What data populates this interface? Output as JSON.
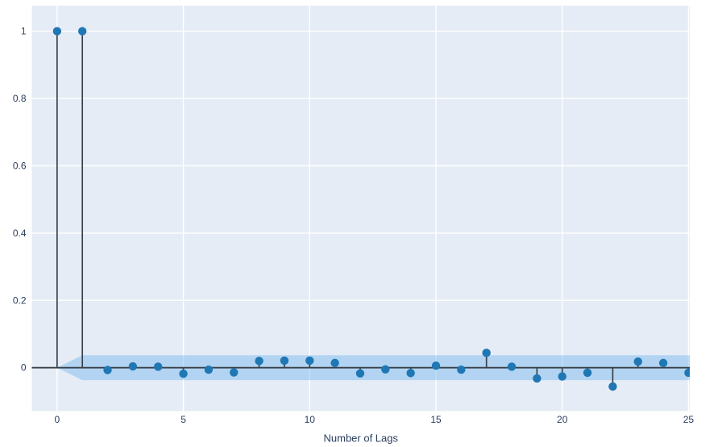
{
  "figure": {
    "outer_background": "#ffffff"
  },
  "chart_data": {
    "type": "stem",
    "description": "Autocorrelation function (ACF) stem plot with confidence band",
    "title": "",
    "xlabel": "Number of Lags",
    "ylabel": "",
    "x": [
      0,
      1,
      2,
      3,
      4,
      5,
      6,
      7,
      8,
      9,
      10,
      11,
      12,
      13,
      14,
      15,
      16,
      17,
      18,
      19,
      20,
      21,
      22,
      23,
      24,
      25
    ],
    "values": [
      1.0,
      1.0,
      -0.007,
      0.004,
      0.003,
      -0.018,
      -0.006,
      -0.014,
      0.02,
      0.021,
      0.021,
      0.014,
      -0.017,
      -0.005,
      -0.016,
      0.006,
      -0.006,
      0.044,
      0.003,
      -0.032,
      -0.026,
      -0.015,
      -0.056,
      0.018,
      0.014,
      -0.015
    ],
    "confidence_band": {
      "halfwidth": 0.037,
      "tip_at_lag": 0,
      "full_width_from_lag": 1,
      "extends_to_right_edge": true
    },
    "xticks": [
      0,
      5,
      10,
      15,
      20,
      25
    ],
    "xtick_labels": [
      "0",
      "5",
      "10",
      "15",
      "20",
      "25"
    ],
    "yticks": [
      0,
      0.2,
      0.4,
      0.6,
      0.8,
      1
    ],
    "ytick_labels": [
      "0",
      "0.2",
      "0.4",
      "0.6",
      "0.8",
      "1"
    ],
    "xlim": [
      -1.0,
      25.05
    ],
    "ylim": [
      -0.129,
      1.076
    ],
    "grid": true,
    "legend": null,
    "colors": {
      "plot_background": "#e5ecf6",
      "grid": "#ffffff",
      "marker": "#1f77b4",
      "stem": "#3a4149",
      "zero_line": "#3a4149",
      "band_fill": "#74b7ee",
      "band_opacity": 0.45,
      "tick_label": "#2a3f5f",
      "axis_title": "#2a3f5f"
    }
  }
}
